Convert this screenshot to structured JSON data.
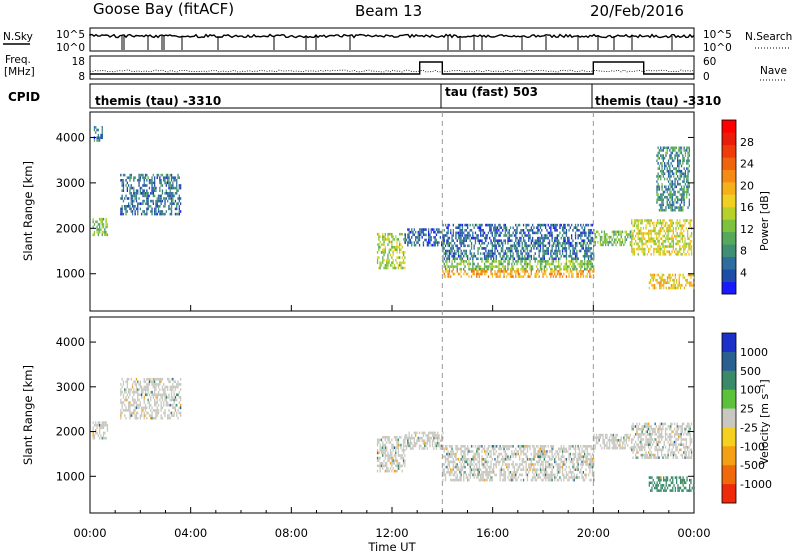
{
  "header": {
    "station": "Goose Bay (fitACF)",
    "beam": "Beam 13",
    "date": "20/Feb/2016"
  },
  "top_panels": {
    "nsky_label": "N.Sky",
    "nsky_ticks": [
      "10^5",
      "10^0"
    ],
    "nsearch_label": "N.Search",
    "nsearch_ticks": [
      "10^5",
      "10^0"
    ],
    "freq_label": "Freq.",
    "freq_unit": "[MHz]",
    "freq_ticks": [
      "18",
      "8"
    ],
    "nave_label": "Nave",
    "nave_ticks": [
      "60",
      "0"
    ],
    "cpid_label": "CPID",
    "cpid_modes": [
      {
        "label": "themis (tau) -3310",
        "start_hour": 0
      },
      {
        "label": "tau (fast) 503",
        "start_hour": 14
      },
      {
        "label": "themis (tau) -3310",
        "start_hour": 20
      }
    ]
  },
  "chart_data": [
    {
      "type": "heatmap",
      "panel": "power",
      "ylabel": "Slant Range [km]",
      "xlabel": "Time UT",
      "x_ticks": [
        "00:00",
        "04:00",
        "08:00",
        "12:00",
        "16:00",
        "20:00",
        "00:00"
      ],
      "xlim_hours": [
        0,
        24
      ],
      "y_ticks": [
        1000,
        2000,
        3000,
        4000
      ],
      "ylim": [
        180,
        4560
      ],
      "mode_change_hours": [
        14,
        20
      ],
      "colorbar": {
        "label": "Power [dB]",
        "ticks": [
          4,
          8,
          12,
          16,
          20,
          24,
          28
        ],
        "range": [
          0,
          32
        ],
        "colors": [
          "#1a1aff",
          "#1e4da8",
          "#2e6e9e",
          "#3f8f74",
          "#56a85a",
          "#7cc23c",
          "#b8d12a",
          "#f0d020",
          "#f5b01a",
          "#f58a14",
          "#f0640e",
          "#ee3c0a",
          "#ea1c0a",
          "#ff0000"
        ]
      },
      "regions": [
        {
          "t0": 0.1,
          "t1": 0.7,
          "r0": 1870,
          "r1": 2230,
          "v": 12
        },
        {
          "t0": 0.15,
          "t1": 0.5,
          "r0": 3950,
          "r1": 4250,
          "v": 6
        },
        {
          "t0": 1.2,
          "t1": 3.6,
          "r0": 2300,
          "r1": 3200,
          "v": 6
        },
        {
          "t0": 11.4,
          "t1": 12.5,
          "r0": 1100,
          "r1": 1900,
          "v": 14
        },
        {
          "t0": 12.5,
          "t1": 14.0,
          "r0": 1600,
          "r1": 2000,
          "v": 5
        },
        {
          "t0": 14.0,
          "t1": 20.0,
          "r0": 1300,
          "r1": 1700,
          "v": 6
        },
        {
          "t0": 14.0,
          "t1": 20.0,
          "r0": 1100,
          "r1": 1300,
          "v": 12
        },
        {
          "t0": 14.0,
          "t1": 20.0,
          "r0": 920,
          "r1": 1080,
          "v": 20
        },
        {
          "t0": 14.0,
          "t1": 20.0,
          "r0": 1700,
          "r1": 2100,
          "v": 5
        },
        {
          "t0": 20.0,
          "t1": 21.5,
          "r0": 1650,
          "r1": 1950,
          "v": 12
        },
        {
          "t0": 21.5,
          "t1": 23.9,
          "r0": 1400,
          "r1": 2200,
          "v": 16
        },
        {
          "t0": 22.2,
          "t1": 24.0,
          "r0": 700,
          "r1": 1000,
          "v": 18
        },
        {
          "t0": 22.5,
          "t1": 23.8,
          "r0": 2400,
          "r1": 3800,
          "v": 8
        }
      ]
    },
    {
      "type": "heatmap",
      "panel": "velocity",
      "ylabel": "Slant Range [km]",
      "xlabel": "Time UT",
      "x_ticks": [
        "00:00",
        "04:00",
        "08:00",
        "12:00",
        "16:00",
        "20:00",
        "00:00"
      ],
      "xlim_hours": [
        0,
        24
      ],
      "y_ticks": [
        1000,
        2000,
        3000,
        4000
      ],
      "ylim": [
        180,
        4560
      ],
      "mode_change_hours": [
        14,
        20
      ],
      "colorbar": {
        "label": "Velocity [m s⁻¹]",
        "ticks": [
          "1000",
          "500",
          "100",
          "25",
          "-25",
          "-100",
          "-500",
          "-1000"
        ],
        "colors": [
          "#1a30c8",
          "#2a6090",
          "#3a8a6a",
          "#5cc23c",
          "#c8c8c0",
          "#f5d020",
          "#f5a014",
          "#f06a0c",
          "#ee2a0a"
        ]
      },
      "regions": [
        {
          "t0": 0.1,
          "t1": 0.7,
          "r0": 1870,
          "r1": 2230,
          "v": 0
        },
        {
          "t0": 1.2,
          "t1": 3.6,
          "r0": 2300,
          "r1": 3200,
          "v": 0
        },
        {
          "t0": 11.4,
          "t1": 12.5,
          "r0": 1100,
          "r1": 1900,
          "v": 0
        },
        {
          "t0": 12.5,
          "t1": 14.0,
          "r0": 1600,
          "r1": 2000,
          "v": 0
        },
        {
          "t0": 14.0,
          "t1": 20.0,
          "r0": 900,
          "r1": 1700,
          "v": 0
        },
        {
          "t0": 20.0,
          "t1": 21.5,
          "r0": 1650,
          "r1": 1950,
          "v": 0
        },
        {
          "t0": 21.5,
          "t1": 23.9,
          "r0": 1400,
          "r1": 2200,
          "v": 0
        },
        {
          "t0": 22.2,
          "t1": 24.0,
          "r0": 700,
          "r1": 1000,
          "v": 100
        }
      ]
    }
  ]
}
